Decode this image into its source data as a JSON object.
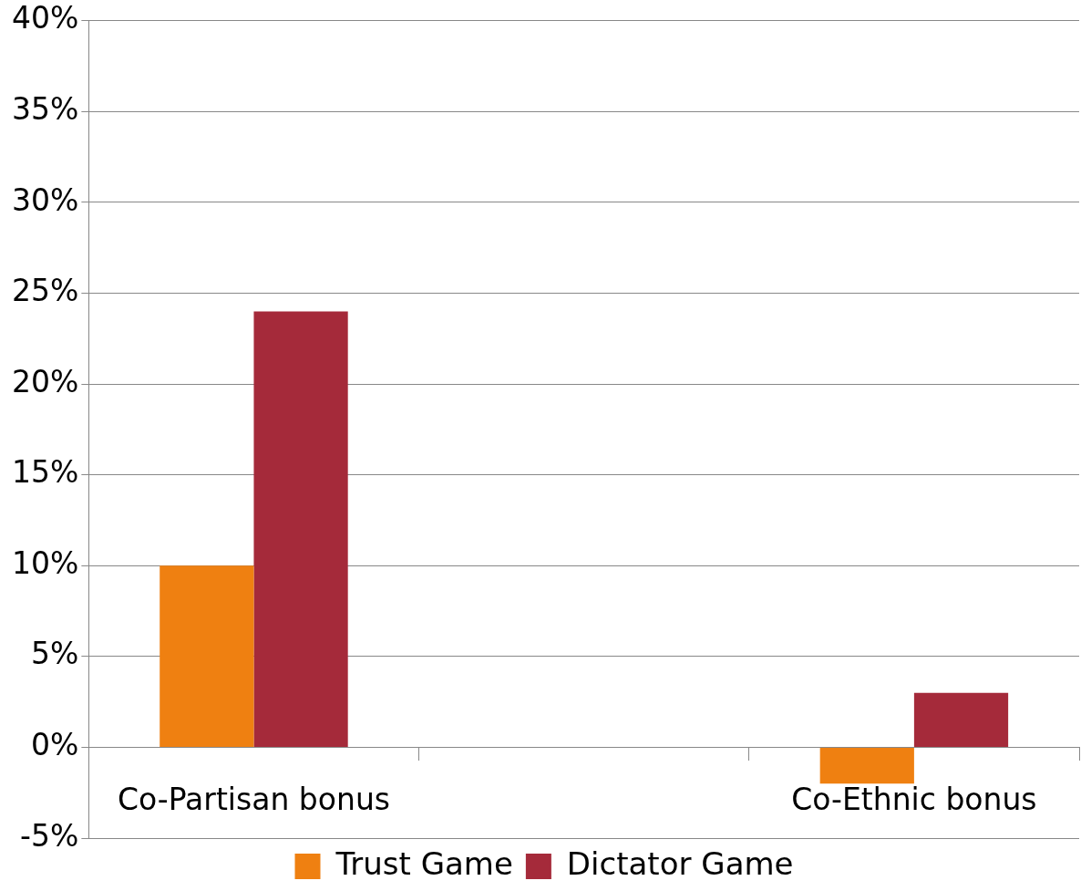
{
  "chart_data": {
    "type": "bar",
    "categories": [
      "Co-Partisan bonus",
      null,
      "Co-Ethnic bonus"
    ],
    "series": [
      {
        "name": "Trust Game",
        "color": "#ef8011",
        "values": [
          10,
          null,
          -2
        ]
      },
      {
        "name": "Dictator Game",
        "color": "#a52a3a",
        "values": [
          24,
          null,
          3
        ]
      }
    ],
    "ylim": [
      -5,
      40
    ],
    "yticks": [
      {
        "value": -5,
        "label": "-5%"
      },
      {
        "value": 0,
        "label": "0%"
      },
      {
        "value": 5,
        "label": "5%"
      },
      {
        "value": 10,
        "label": "10%"
      },
      {
        "value": 15,
        "label": "15%"
      },
      {
        "value": 20,
        "label": "20%"
      },
      {
        "value": 25,
        "label": "25%"
      },
      {
        "value": 30,
        "label": "30%"
      },
      {
        "value": 35,
        "label": "35%"
      },
      {
        "value": 40,
        "label": "40%"
      }
    ],
    "grid": "y",
    "legend": "bottom"
  }
}
